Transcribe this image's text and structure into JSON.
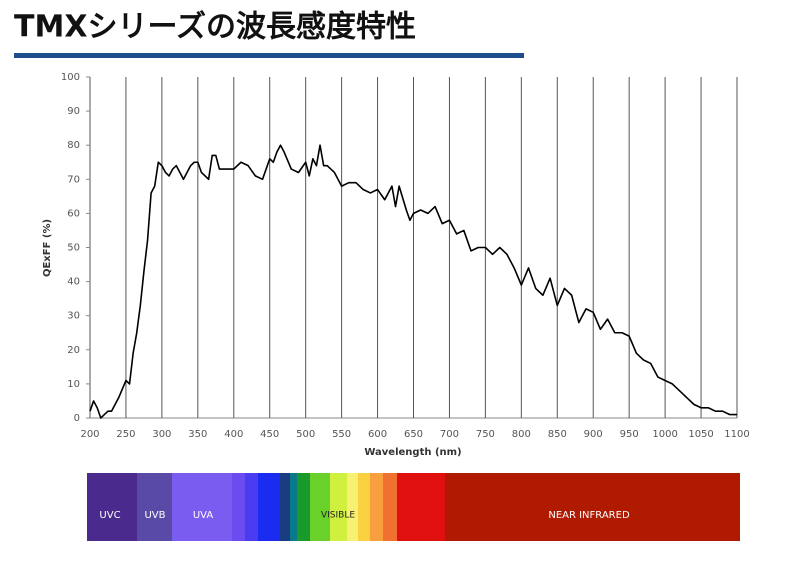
{
  "chart_data": {
    "type": "line",
    "title": "TMXシリーズの波長感度特性",
    "x_label": "Wavelength (nm)",
    "y_label": "QExFF (%)",
    "color": "#000000",
    "grid": "vertical",
    "xlim": [
      200,
      1100
    ],
    "ylim": [
      0,
      100
    ],
    "xticks": [
      200,
      250,
      300,
      350,
      400,
      450,
      500,
      550,
      600,
      650,
      700,
      750,
      800,
      850,
      900,
      950,
      1000,
      1050,
      1100
    ],
    "yticks": [
      0,
      10,
      20,
      30,
      40,
      50,
      60,
      70,
      80,
      90,
      100
    ],
    "x": [
      200,
      205,
      210,
      215,
      220,
      225,
      230,
      240,
      250,
      255,
      260,
      265,
      270,
      275,
      280,
      285,
      290,
      295,
      300,
      305,
      310,
      315,
      320,
      330,
      340,
      345,
      350,
      355,
      360,
      365,
      370,
      375,
      380,
      385,
      390,
      400,
      410,
      420,
      430,
      440,
      450,
      455,
      460,
      465,
      470,
      480,
      490,
      500,
      505,
      510,
      515,
      520,
      525,
      530,
      540,
      550,
      560,
      570,
      580,
      590,
      600,
      610,
      620,
      625,
      630,
      640,
      645,
      650,
      660,
      670,
      680,
      690,
      700,
      710,
      720,
      730,
      740,
      750,
      760,
      770,
      780,
      790,
      800,
      810,
      820,
      830,
      840,
      850,
      860,
      870,
      880,
      890,
      900,
      910,
      920,
      930,
      940,
      950,
      960,
      970,
      980,
      990,
      1000,
      1010,
      1020,
      1030,
      1040,
      1050,
      1060,
      1070,
      1080,
      1090,
      1100
    ],
    "values": [
      2,
      5,
      3,
      0,
      1,
      2,
      2,
      6,
      11,
      10,
      19,
      25,
      33,
      43,
      52,
      66,
      68,
      75,
      74,
      72,
      71,
      73,
      74,
      70,
      74,
      75,
      75,
      72,
      71,
      70,
      77,
      77,
      73,
      73,
      73,
      73,
      75,
      74,
      71,
      70,
      76,
      75,
      78,
      80,
      78,
      73,
      72,
      75,
      71,
      76,
      74,
      80,
      74,
      74,
      72,
      68,
      69,
      69,
      67,
      66,
      67,
      64,
      68,
      62,
      68,
      61,
      58,
      60,
      61,
      60,
      62,
      57,
      58,
      54,
      55,
      49,
      50,
      50,
      48,
      50,
      48,
      44,
      39,
      44,
      38,
      36,
      41,
      33,
      38,
      36,
      28,
      32,
      31,
      26,
      29,
      25,
      25,
      24,
      19,
      17,
      16,
      12,
      11,
      10,
      8,
      6,
      4,
      3,
      3,
      2,
      2,
      1,
      1
    ],
    "spectrum_labels": [
      "UVC",
      "UVB",
      "UVA",
      "VISIBLE",
      "NEAR INFRARED"
    ]
  }
}
